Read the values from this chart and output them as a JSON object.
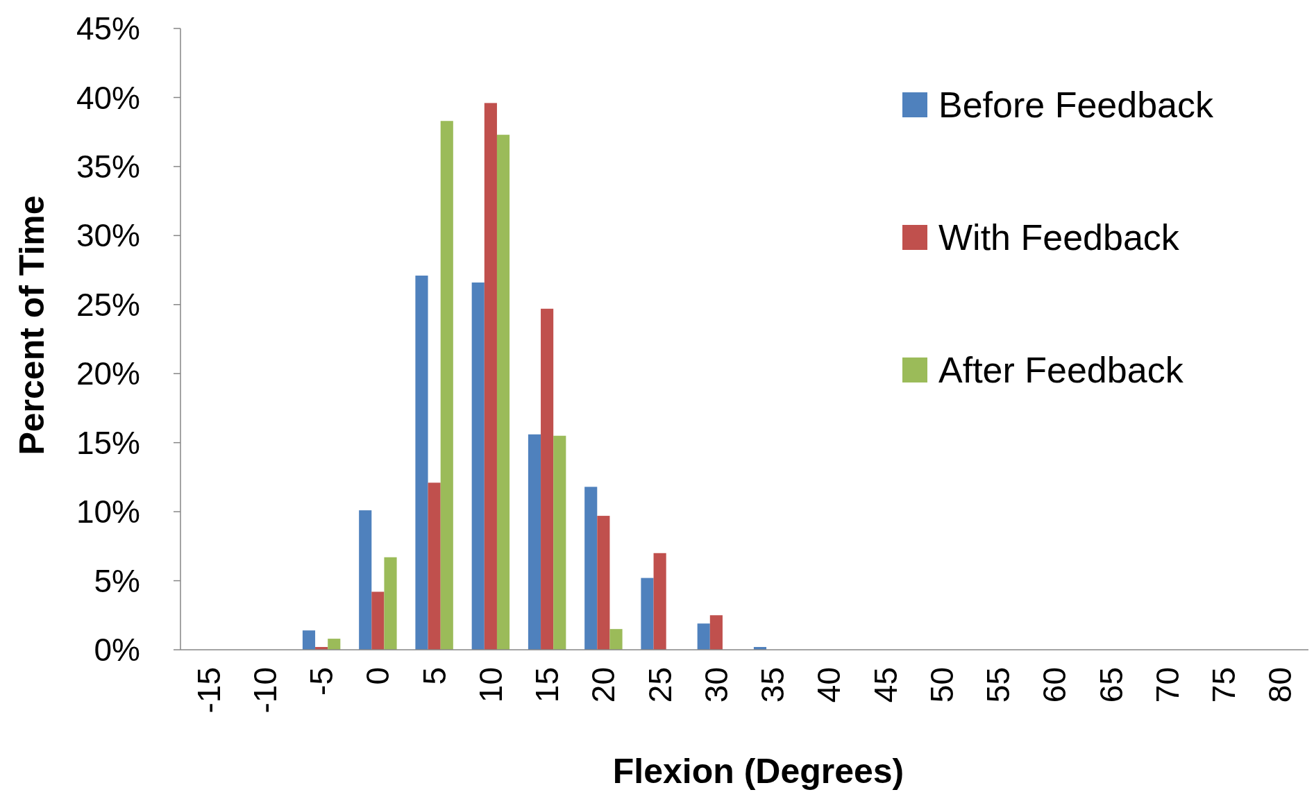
{
  "chart_data": {
    "type": "bar",
    "xlabel": "Flexion (Degrees)",
    "ylabel": "Percent of Time",
    "categories": [
      "-15",
      "-10",
      "-5",
      "0",
      "5",
      "10",
      "15",
      "20",
      "25",
      "30",
      "35",
      "40",
      "45",
      "50",
      "55",
      "60",
      "65",
      "70",
      "75",
      "80"
    ],
    "series": [
      {
        "name": "Before Feedback",
        "color": "#4f81bd",
        "values": [
          0,
          0,
          1.4,
          10.1,
          27.1,
          26.6,
          15.6,
          11.8,
          5.2,
          1.9,
          0.2,
          0,
          0,
          0,
          0,
          0,
          0,
          0,
          0,
          0
        ]
      },
      {
        "name": "With Feedback",
        "color": "#c0504d",
        "values": [
          0,
          0,
          0.2,
          4.2,
          12.1,
          39.6,
          24.7,
          9.7,
          7.0,
          2.5,
          0,
          0,
          0,
          0,
          0,
          0,
          0,
          0,
          0,
          0
        ]
      },
      {
        "name": "After Feedback",
        "color": "#9bbb59",
        "values": [
          0,
          0,
          0.8,
          6.7,
          38.3,
          37.3,
          15.5,
          1.5,
          0,
          0,
          0,
          0,
          0,
          0,
          0,
          0,
          0,
          0,
          0,
          0
        ]
      }
    ],
    "ylim": [
      0,
      45
    ],
    "yticks": [
      {
        "value": 0,
        "label": "0%"
      },
      {
        "value": 5,
        "label": "5%"
      },
      {
        "value": 10,
        "label": "10%"
      },
      {
        "value": 15,
        "label": "15%"
      },
      {
        "value": 20,
        "label": "20%"
      },
      {
        "value": 25,
        "label": "25%"
      },
      {
        "value": 30,
        "label": "30%"
      },
      {
        "value": 35,
        "label": "35%"
      },
      {
        "value": 40,
        "label": "40%"
      },
      {
        "value": 45,
        "label": "45%"
      }
    ],
    "grid": false,
    "legend": "top right"
  }
}
